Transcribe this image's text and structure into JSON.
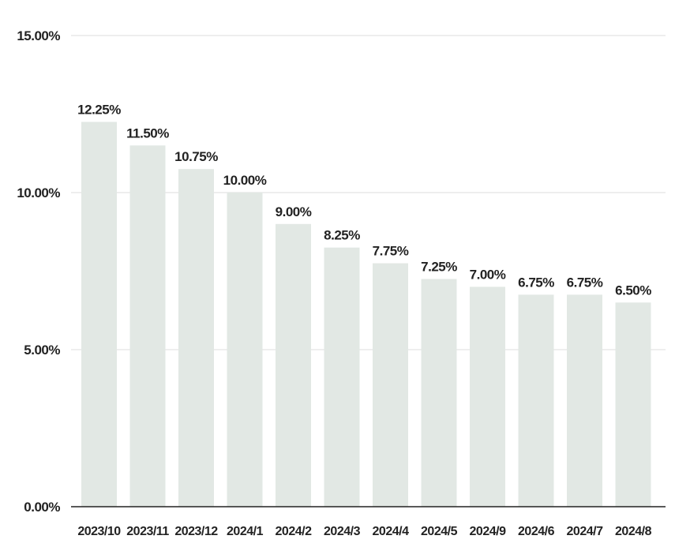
{
  "chart_data": {
    "type": "bar",
    "categories": [
      "2023/10",
      "2023/11",
      "2023/12",
      "2024/1",
      "2024/2",
      "2024/3",
      "2024/4",
      "2024/5",
      "2024/9",
      "2024/6",
      "2024/7",
      "2024/8"
    ],
    "values": [
      12.25,
      11.5,
      10.75,
      10.0,
      9.0,
      8.25,
      7.75,
      7.25,
      7.0,
      6.75,
      6.75,
      6.5
    ],
    "value_labels": [
      "12.25%",
      "11.50%",
      "10.75%",
      "10.00%",
      "9.00%",
      "8.25%",
      "7.75%",
      "7.25%",
      "7.00%",
      "6.75%",
      "6.75%",
      "6.50%"
    ],
    "y_ticks": [
      0,
      5,
      10,
      15
    ],
    "y_tick_labels": [
      "0.00%",
      "5.00%",
      "10.00%",
      "15.00%"
    ],
    "ylim": [
      0,
      15
    ],
    "title": "",
    "xlabel": "",
    "ylabel": "",
    "grid": true,
    "legend": "none",
    "colors": {
      "bar": "#e2e8e4",
      "text": "#222222",
      "grid": "#dcdcdc",
      "axis": "#222222"
    }
  }
}
